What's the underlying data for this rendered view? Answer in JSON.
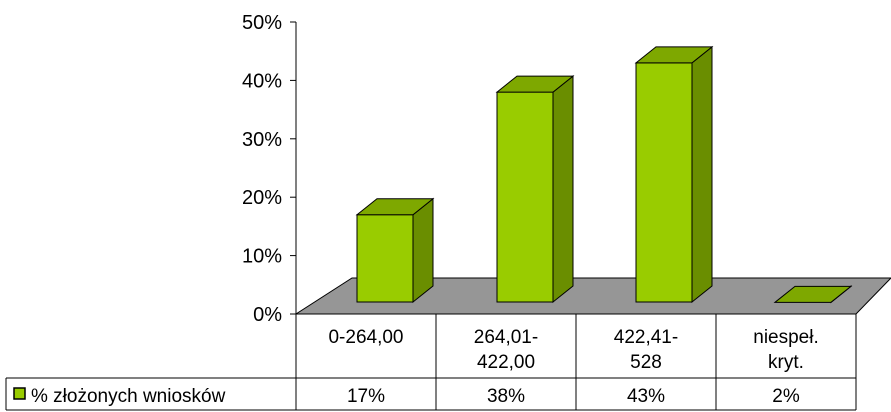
{
  "chart_data": {
    "type": "bar",
    "style": "3d-column",
    "categories": [
      [
        "0-264,00"
      ],
      [
        "264,01-",
        "422,00"
      ],
      [
        "422,41-",
        "528"
      ],
      [
        "niespeł.",
        "kryt."
      ]
    ],
    "series": [
      {
        "name": "% złożonych wniosków",
        "values": [
          17,
          38,
          43,
          2
        ],
        "value_labels": [
          "17%",
          "38%",
          "43%",
          "2%"
        ],
        "color": "#99cc00"
      }
    ],
    "y_ticks": [
      "0%",
      "10%",
      "20%",
      "30%",
      "40%",
      "50%"
    ],
    "ylim": [
      0,
      50
    ],
    "grid": false,
    "legend": "data-table-left",
    "floor_color": "#969696",
    "side_color": "#6a8e00",
    "top_color": "#7ea800"
  }
}
